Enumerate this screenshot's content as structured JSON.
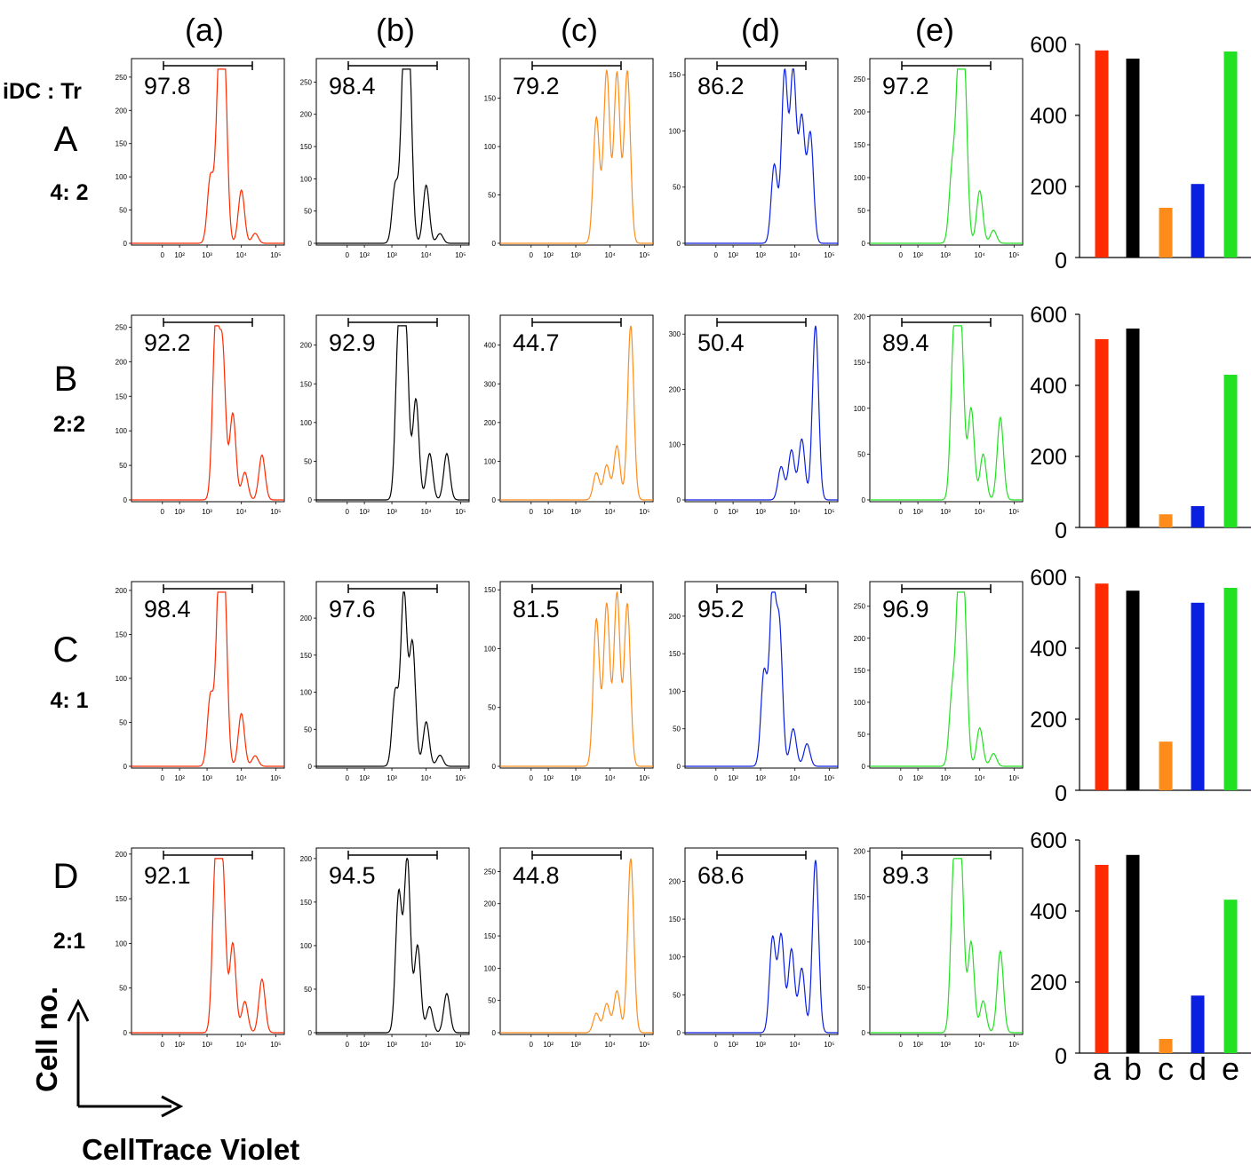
{
  "figure": {
    "column_headers": [
      "(a)",
      "(b)",
      "(c)",
      "(d)",
      "(e)"
    ],
    "corner_label": "iDC : Tr",
    "x_axis_label": "CellTrace Violet",
    "y_axis_label": "Cell no.",
    "series_colors": {
      "a": "#ff2a00",
      "b": "#000000",
      "c": "#ff8c1a",
      "d": "#0a1fe0",
      "e": "#22e022"
    },
    "histogram_x_ticks": [
      "0",
      "10²",
      "10³",
      "10⁴",
      "10⁵"
    ],
    "rows": [
      {
        "letter": "A",
        "ratio": "4: 2"
      },
      {
        "letter": "B",
        "ratio": "2:2"
      },
      {
        "letter": "C",
        "ratio": "4: 1"
      },
      {
        "letter": "D",
        "ratio": "2:1"
      }
    ]
  },
  "chart_data": [
    {
      "type": "histogram_grid",
      "x_scale": "log",
      "x_ticks": [
        "0",
        "10²",
        "10³",
        "10⁴",
        "10⁵"
      ],
      "panels": [
        {
          "row": "A",
          "column": "a",
          "color": "#ff2a00",
          "gate_percent": "97.8",
          "y_ticks": [
            "0",
            "50",
            "100",
            "150",
            "200",
            "250"
          ],
          "y_max": 262,
          "peak_log10": [
            3.1,
            3.35,
            3.5,
            4.0,
            4.4
          ],
          "peak_height": [
            100,
            245,
            262,
            80,
            15
          ]
        },
        {
          "row": "A",
          "column": "b",
          "color": "#000000",
          "gate_percent": "98.4",
          "y_ticks": [
            "0",
            "50",
            "100",
            "150",
            "200",
            "250"
          ],
          "y_max": 270,
          "peak_log10": [
            3.1,
            3.35,
            3.5,
            4.0,
            4.4
          ],
          "peak_height": [
            90,
            268,
            270,
            90,
            15
          ]
        },
        {
          "row": "A",
          "column": "c",
          "color": "#ff8c1a",
          "gate_percent": "79.2",
          "y_ticks": [
            "0",
            "50",
            "100",
            "150"
          ],
          "y_max": 180,
          "peak_log10": [
            3.6,
            3.9,
            4.2,
            4.5
          ],
          "peak_height": [
            130,
            178,
            176,
            178
          ]
        },
        {
          "row": "A",
          "column": "d",
          "color": "#0a1fe0",
          "gate_percent": "86.2",
          "y_ticks": [
            "0",
            "50",
            "100",
            "150"
          ],
          "y_max": 155,
          "peak_log10": [
            3.4,
            3.7,
            3.95,
            4.2,
            4.45
          ],
          "peak_height": [
            70,
            152,
            152,
            110,
            97
          ]
        },
        {
          "row": "A",
          "column": "e",
          "color": "#22e022",
          "gate_percent": "97.2",
          "y_ticks": [
            "0",
            "50",
            "100",
            "150",
            "200",
            "250"
          ],
          "y_max": 265,
          "peak_log10": [
            3.2,
            3.4,
            3.55,
            4.0,
            4.4
          ],
          "peak_height": [
            110,
            262,
            245,
            80,
            20
          ]
        },
        {
          "row": "B",
          "column": "a",
          "color": "#ff2a00",
          "gate_percent": "92.2",
          "y_ticks": [
            "0",
            "50",
            "100",
            "150",
            "200",
            "250"
          ],
          "y_max": 252,
          "peak_log10": [
            3.25,
            3.45,
            3.75,
            4.1,
            4.6
          ],
          "peak_height": [
            250,
            215,
            125,
            40,
            65
          ]
        },
        {
          "row": "B",
          "column": "b",
          "color": "#000000",
          "gate_percent": "92.9",
          "y_ticks": [
            "0",
            "50",
            "100",
            "150",
            "200"
          ],
          "y_max": 225,
          "peak_log10": [
            3.2,
            3.4,
            3.7,
            4.1,
            4.6
          ],
          "peak_height": [
            222,
            222,
            130,
            60,
            60
          ]
        },
        {
          "row": "B",
          "column": "c",
          "color": "#ff8c1a",
          "gate_percent": "44.7",
          "y_ticks": [
            "0",
            "100",
            "200",
            "300",
            "400"
          ],
          "y_max": 450,
          "peak_log10": [
            3.6,
            3.9,
            4.2,
            4.6
          ],
          "peak_height": [
            70,
            90,
            140,
            450
          ]
        },
        {
          "row": "B",
          "column": "d",
          "color": "#0a1fe0",
          "gate_percent": "50.4",
          "y_ticks": [
            "0",
            "100",
            "200",
            "300"
          ],
          "y_max": 315,
          "peak_log10": [
            3.6,
            3.9,
            4.2,
            4.6
          ],
          "peak_height": [
            60,
            90,
            110,
            315
          ]
        },
        {
          "row": "B",
          "column": "e",
          "color": "#22e022",
          "gate_percent": "89.4",
          "y_ticks": [
            "0",
            "50",
            "100",
            "150",
            "200"
          ],
          "y_max": 190,
          "peak_log10": [
            3.25,
            3.45,
            3.75,
            4.1,
            4.6
          ],
          "peak_height": [
            180,
            190,
            100,
            50,
            90
          ]
        },
        {
          "row": "C",
          "column": "a",
          "color": "#ff2a00",
          "gate_percent": "98.4",
          "y_ticks": [
            "0",
            "50",
            "100",
            "150",
            "200"
          ],
          "y_max": 198,
          "peak_log10": [
            3.1,
            3.35,
            3.5,
            4.0,
            4.4
          ],
          "peak_height": [
            80,
            198,
            195,
            60,
            12
          ]
        },
        {
          "row": "C",
          "column": "b",
          "color": "#000000",
          "gate_percent": "97.6",
          "y_ticks": [
            "0",
            "50",
            "100",
            "150",
            "200"
          ],
          "y_max": 235,
          "peak_log10": [
            3.1,
            3.35,
            3.6,
            4.0,
            4.4
          ],
          "peak_height": [
            100,
            235,
            165,
            60,
            15
          ]
        },
        {
          "row": "C",
          "column": "c",
          "color": "#ff8c1a",
          "gate_percent": "81.5",
          "y_ticks": [
            "0",
            "50",
            "100",
            "150"
          ],
          "y_max": 148,
          "peak_log10": [
            3.6,
            3.9,
            4.2,
            4.5
          ],
          "peak_height": [
            125,
            138,
            147,
            138
          ]
        },
        {
          "row": "C",
          "column": "d",
          "color": "#0a1fe0",
          "gate_percent": "95.2",
          "y_ticks": [
            "0",
            "50",
            "100",
            "150",
            "200"
          ],
          "y_max": 232,
          "peak_log10": [
            3.1,
            3.35,
            3.55,
            3.95,
            4.35
          ],
          "peak_height": [
            125,
            232,
            180,
            50,
            30
          ]
        },
        {
          "row": "C",
          "column": "e",
          "color": "#22e022",
          "gate_percent": "96.9",
          "y_ticks": [
            "0",
            "50",
            "100",
            "150",
            "200",
            "250"
          ],
          "y_max": 272,
          "peak_log10": [
            3.2,
            3.4,
            3.55,
            4.0,
            4.4
          ],
          "peak_height": [
            110,
            272,
            225,
            60,
            20
          ]
        },
        {
          "row": "D",
          "column": "a",
          "color": "#ff2a00",
          "gate_percent": "92.1",
          "y_ticks": [
            "0",
            "50",
            "100",
            "150",
            "200"
          ],
          "y_max": 195,
          "peak_log10": [
            3.25,
            3.45,
            3.75,
            4.1,
            4.6
          ],
          "peak_height": [
            192,
            185,
            100,
            35,
            60
          ]
        },
        {
          "row": "D",
          "column": "b",
          "color": "#000000",
          "gate_percent": "94.5",
          "y_ticks": [
            "0",
            "50",
            "100",
            "150",
            "200"
          ],
          "y_max": 200,
          "peak_log10": [
            3.2,
            3.45,
            3.75,
            4.1,
            4.6
          ],
          "peak_height": [
            160,
            200,
            100,
            30,
            45
          ]
        },
        {
          "row": "D",
          "column": "c",
          "color": "#ff8c1a",
          "gate_percent": "44.8",
          "y_ticks": [
            "0",
            "50",
            "100",
            "150",
            "200",
            "250"
          ],
          "y_max": 270,
          "peak_log10": [
            3.6,
            3.9,
            4.2,
            4.6
          ],
          "peak_height": [
            30,
            45,
            65,
            270
          ]
        },
        {
          "row": "D",
          "column": "d",
          "color": "#0a1fe0",
          "gate_percent": "68.6",
          "y_ticks": [
            "0",
            "50",
            "100",
            "150",
            "200"
          ],
          "y_max": 230,
          "peak_log10": [
            3.35,
            3.6,
            3.9,
            4.2,
            4.6
          ],
          "peak_height": [
            125,
            128,
            110,
            85,
            228
          ]
        },
        {
          "row": "D",
          "column": "e",
          "color": "#22e022",
          "gate_percent": "89.3",
          "y_ticks": [
            "0",
            "50",
            "100",
            "150",
            "200"
          ],
          "y_max": 192,
          "peak_log10": [
            3.25,
            3.45,
            3.75,
            4.1,
            4.6
          ],
          "peak_height": [
            185,
            192,
            100,
            35,
            90
          ]
        }
      ]
    },
    {
      "type": "bar",
      "panel_row": "A",
      "categories": [
        "a",
        "b",
        "c",
        "d",
        "e"
      ],
      "values": [
        583,
        560,
        140,
        207,
        580
      ],
      "colors": [
        "#ff2a00",
        "#000000",
        "#ff8c1a",
        "#0a1fe0",
        "#22e022"
      ],
      "ylim": [
        0,
        600
      ],
      "yticks": [
        "0",
        "200",
        "400",
        "600"
      ]
    },
    {
      "type": "bar",
      "panel_row": "B",
      "categories": [
        "a",
        "b",
        "c",
        "d",
        "e"
      ],
      "values": [
        530,
        560,
        37,
        60,
        430
      ],
      "colors": [
        "#ff2a00",
        "#000000",
        "#ff8c1a",
        "#0a1fe0",
        "#22e022"
      ],
      "ylim": [
        0,
        600
      ],
      "yticks": [
        "0",
        "200",
        "400",
        "600"
      ]
    },
    {
      "type": "bar",
      "panel_row": "C",
      "categories": [
        "a",
        "b",
        "c",
        "d",
        "e"
      ],
      "values": [
        582,
        562,
        137,
        528,
        570
      ],
      "colors": [
        "#ff2a00",
        "#000000",
        "#ff8c1a",
        "#0a1fe0",
        "#22e022"
      ],
      "ylim": [
        0,
        600
      ],
      "yticks": [
        "0",
        "200",
        "400",
        "600"
      ]
    },
    {
      "type": "bar",
      "panel_row": "D",
      "categories": [
        "a",
        "b",
        "c",
        "d",
        "e"
      ],
      "values": [
        530,
        558,
        40,
        162,
        432
      ],
      "colors": [
        "#ff2a00",
        "#000000",
        "#ff8c1a",
        "#0a1fe0",
        "#22e022"
      ],
      "ylim": [
        0,
        600
      ],
      "yticks": [
        "0",
        "200",
        "400",
        "600"
      ],
      "category_labels_shown": true
    }
  ]
}
